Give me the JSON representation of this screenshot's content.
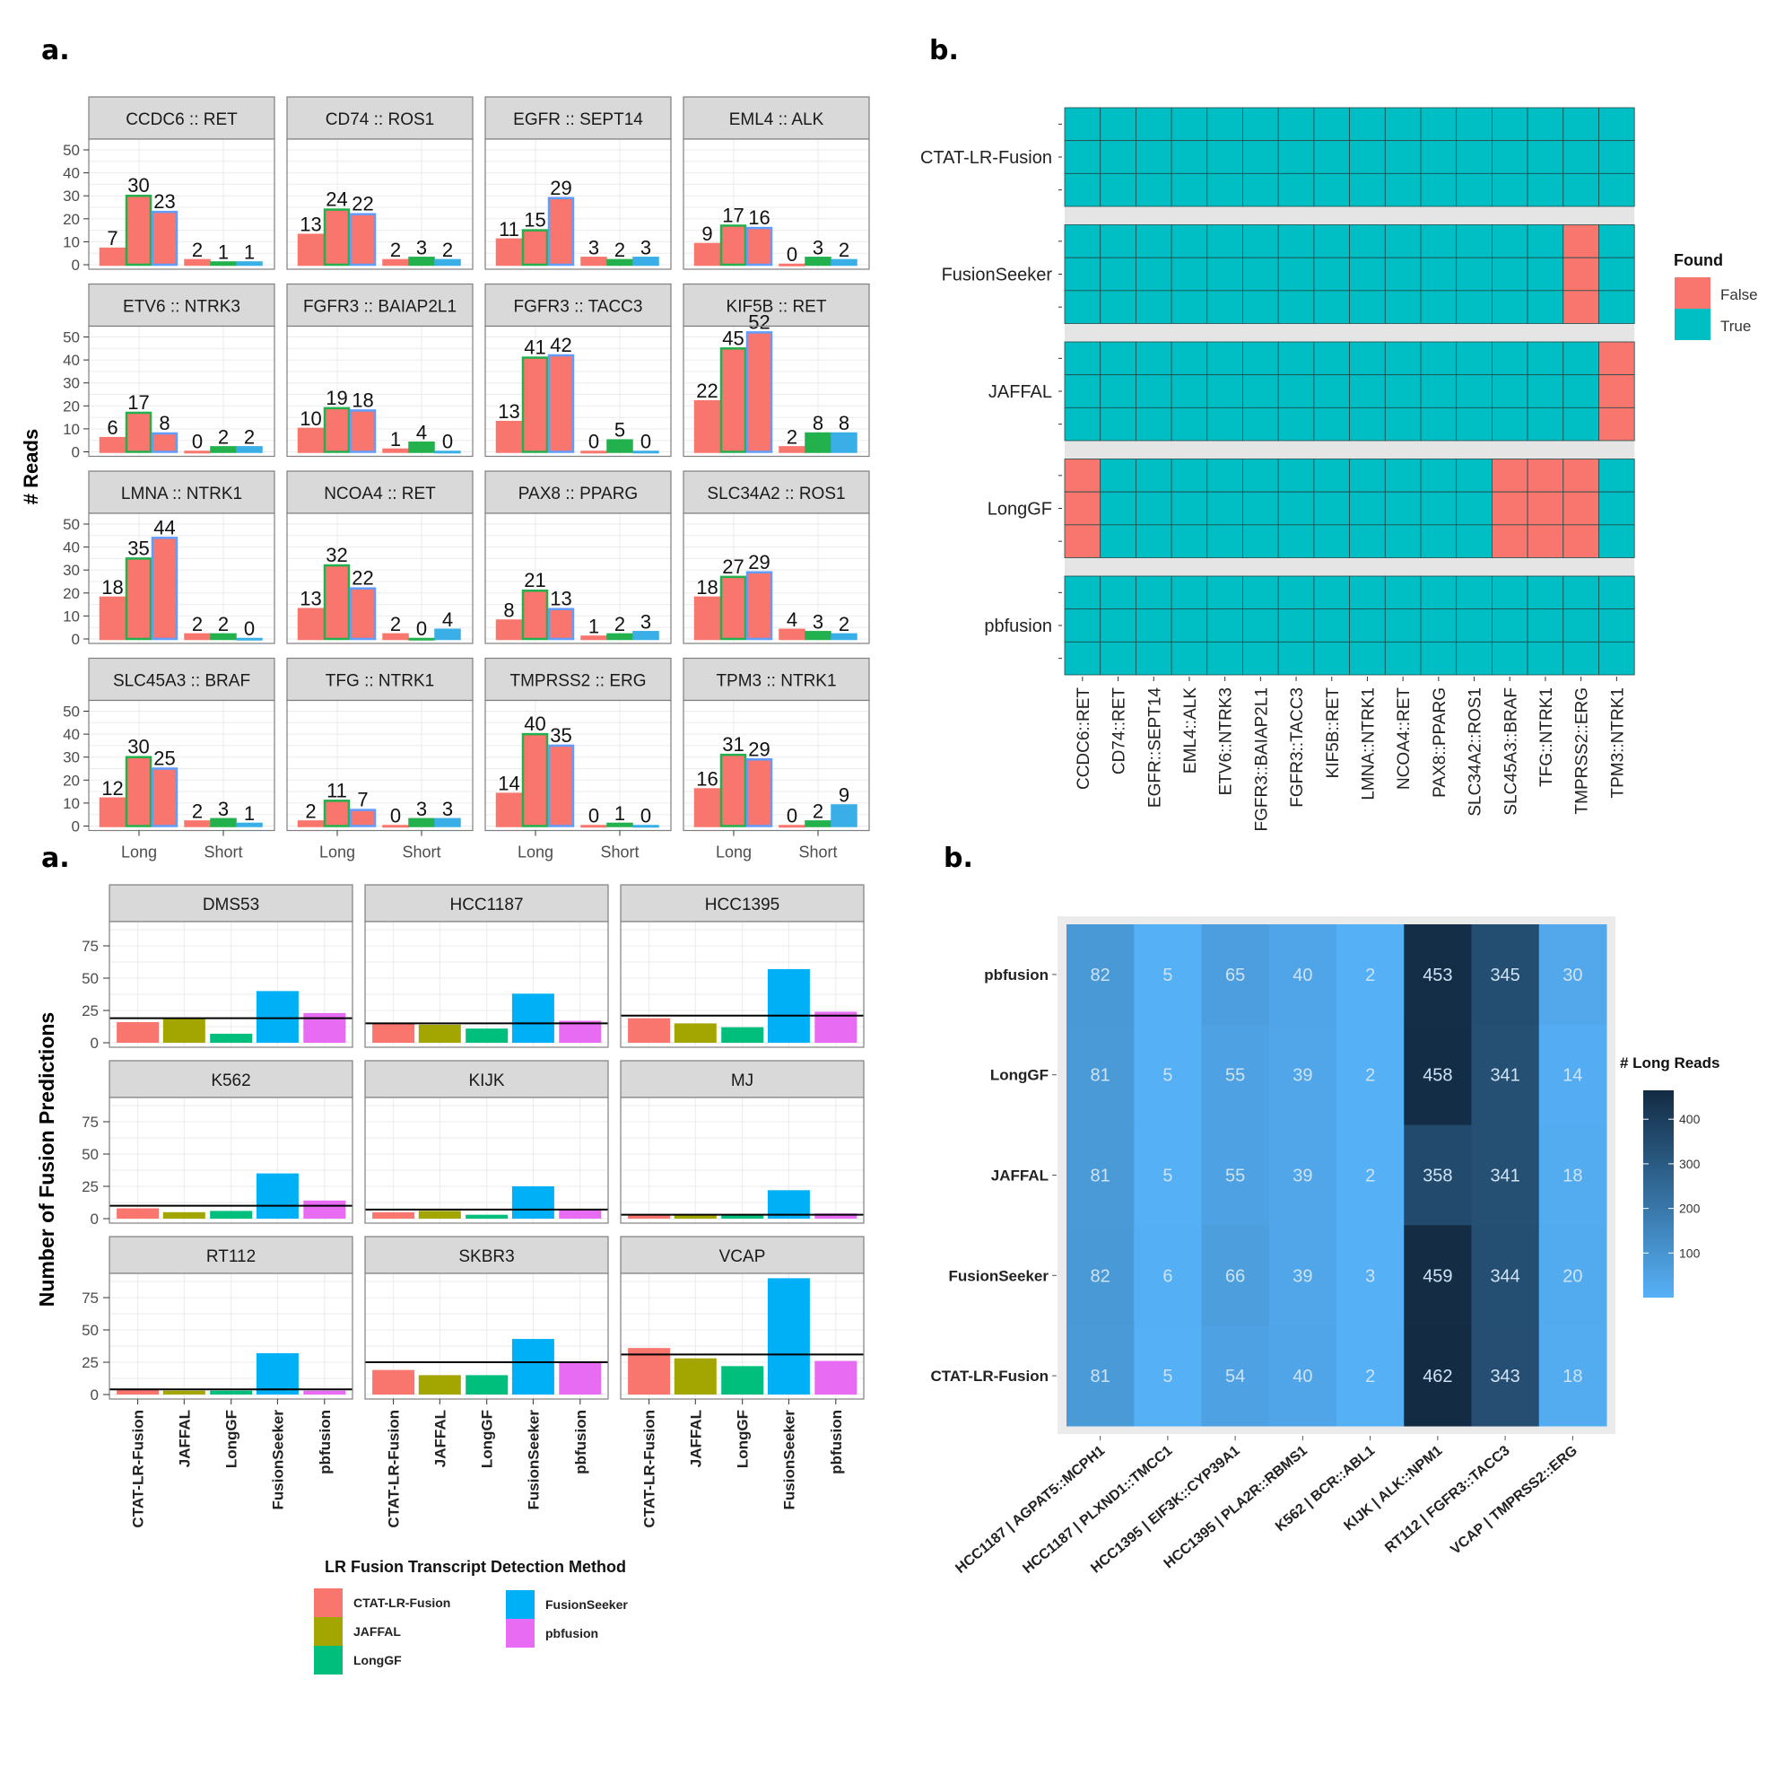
{
  "panel_labels": {
    "top_left": "a.",
    "top_right": "b.",
    "bottom_left": "a.",
    "bottom_right": "b."
  },
  "chart_data": [
    {
      "type": "bar",
      "ylabel": "# Reads",
      "ylim": [
        0,
        50
      ],
      "yticks": [
        "0",
        "10",
        "20",
        "30",
        "40",
        "50"
      ],
      "categories": [
        "Long",
        "Short"
      ],
      "grid": true,
      "colors": {
        "red": "#F8766D",
        "green": "#22B14C",
        "blue": "#3AAEE6",
        "blue_outline": "#619CFF"
      },
      "facets": [
        {
          "title": "CCDC6 :: RET",
          "long": [
            7,
            30,
            23
          ],
          "short": [
            2,
            1,
            1
          ]
        },
        {
          "title": "CD74 :: ROS1",
          "long": [
            13,
            24,
            22
          ],
          "short": [
            2,
            3,
            2
          ]
        },
        {
          "title": "EGFR :: SEPT14",
          "long": [
            11,
            15,
            29
          ],
          "short": [
            3,
            2,
            3
          ]
        },
        {
          "title": "EML4 :: ALK",
          "long": [
            9,
            17,
            16
          ],
          "short": [
            0,
            3,
            2
          ]
        },
        {
          "title": "ETV6 :: NTRK3",
          "long": [
            6,
            17,
            8
          ],
          "short": [
            0,
            2,
            2
          ]
        },
        {
          "title": "FGFR3 :: BAIAP2L1",
          "long": [
            10,
            19,
            18
          ],
          "short": [
            1,
            4,
            0
          ]
        },
        {
          "title": "FGFR3 :: TACC3",
          "long": [
            13,
            41,
            42
          ],
          "short": [
            0,
            5,
            0
          ]
        },
        {
          "title": "KIF5B :: RET",
          "long": [
            22,
            45,
            52
          ],
          "short": [
            2,
            8,
            8
          ]
        },
        {
          "title": "LMNA :: NTRK1",
          "long": [
            18,
            35,
            44
          ],
          "short": [
            2,
            2,
            0
          ]
        },
        {
          "title": "NCOA4 :: RET",
          "long": [
            13,
            32,
            22
          ],
          "short": [
            2,
            0,
            4
          ]
        },
        {
          "title": "PAX8 :: PPARG",
          "long": [
            8,
            21,
            13
          ],
          "short": [
            1,
            2,
            3
          ]
        },
        {
          "title": "SLC34A2 :: ROS1",
          "long": [
            18,
            27,
            29
          ],
          "short": [
            4,
            3,
            2
          ]
        },
        {
          "title": "SLC45A3 :: BRAF",
          "long": [
            12,
            30,
            25
          ],
          "short": [
            2,
            3,
            1
          ]
        },
        {
          "title": "TFG :: NTRK1",
          "long": [
            2,
            11,
            7
          ],
          "short": [
            0,
            3,
            3
          ]
        },
        {
          "title": "TMPRSS2 :: ERG",
          "long": [
            14,
            40,
            35
          ],
          "short": [
            0,
            1,
            0
          ]
        },
        {
          "title": "TPM3 :: NTRK1",
          "long": [
            16,
            31,
            29
          ],
          "short": [
            0,
            2,
            9
          ]
        }
      ]
    },
    {
      "type": "heatmap",
      "legend_title": "Found",
      "legend": [
        {
          "label": "False",
          "color": "#F8766D"
        },
        {
          "label": "True",
          "color": "#00BFC4"
        }
      ],
      "legend_placement": "right",
      "replicates_per_method": 3,
      "methods": [
        "CTAT-LR-Fusion",
        "FusionSeeker",
        "JAFFAL",
        "LongGF",
        "pbfusion"
      ],
      "fusions": [
        "CCDC6::RET",
        "CD74::RET",
        "EGFR::SEPT14",
        "EML4::ALK",
        "ETV6::NTRK3",
        "FGFR3::BAIAP2L1",
        "FGFR3::TACC3",
        "KIF5B::RET",
        "LMNA::NTRK1",
        "NCOA4::RET",
        "PAX8::PPARG",
        "SLC34A2::ROS1",
        "SLC45A3::BRAF",
        "TFG::NTRK1",
        "TMPRSS2::ERG",
        "TPM3::NTRK1"
      ],
      "not_found": {
        "CTAT-LR-Fusion": [],
        "FusionSeeker": [
          "TMPRSS2::ERG"
        ],
        "JAFFAL": [
          "TPM3::NTRK1"
        ],
        "LongGF": [
          "CCDC6::RET",
          "SLC45A3::BRAF",
          "TFG::NTRK1",
          "TMPRSS2::ERG"
        ],
        "pbfusion": []
      }
    },
    {
      "type": "bar",
      "ylabel": "Number of Fusion Predictions",
      "ylim": [
        0,
        95
      ],
      "yticks": [
        "0",
        "25",
        "50",
        "75"
      ],
      "grid": true,
      "categories": [
        "CTAT-LR-Fusion",
        "JAFFAL",
        "LongGF",
        "FusionSeeker",
        "pbfusion"
      ],
      "colors": [
        "#F8766D",
        "#A3A500",
        "#00BF7D",
        "#00B0F6",
        "#E76BF3"
      ],
      "legend_title": "LR Fusion Transcript Detection Method",
      "legend_placement": "bottom",
      "facets": [
        {
          "title": "DMS53",
          "values": [
            16,
            19,
            7,
            40,
            23
          ],
          "hline": 19
        },
        {
          "title": "HCC1187",
          "values": [
            15,
            14,
            11,
            38,
            17
          ],
          "hline": 15
        },
        {
          "title": "HCC1395",
          "values": [
            19,
            15,
            12,
            57,
            24
          ],
          "hline": 21
        },
        {
          "title": "K562",
          "values": [
            8,
            5,
            6,
            35,
            14
          ],
          "hline": 10
        },
        {
          "title": "KIJK",
          "values": [
            5,
            6,
            3,
            25,
            7
          ],
          "hline": 7
        },
        {
          "title": "MJ",
          "values": [
            3,
            3,
            3,
            22,
            4
          ],
          "hline": 3
        },
        {
          "title": "RT112",
          "values": [
            4,
            3,
            3,
            32,
            3
          ],
          "hline": 4
        },
        {
          "title": "SKBR3",
          "values": [
            19,
            15,
            15,
            43,
            25
          ],
          "hline": 25
        },
        {
          "title": "VCAP",
          "values": [
            36,
            28,
            22,
            90,
            26
          ],
          "hline": 31
        }
      ]
    },
    {
      "type": "heatmap",
      "legend_title": "# Long Reads",
      "legend_ticks": [
        "100",
        "200",
        "300",
        "400"
      ],
      "legend_placement": "right",
      "color_low": "#56B1F7",
      "color_high": "#132B43",
      "rows": [
        "pbfusion",
        "LongGF",
        "JAFFAL",
        "FusionSeeker",
        "CTAT-LR-Fusion"
      ],
      "columns": [
        "HCC1187 | AGPAT5::MCPH1",
        "HCC1187 | PLXND1::TMCC1",
        "HCC1395 | EIF3K::CYP39A1",
        "HCC1395 | PLA2R::RBMS1",
        "K562 | BCR::ABL1",
        "KIJK | ALK::NPM1",
        "RT112 | FGFR3::TACC3",
        "VCAP | TMPRSS2::ERG"
      ],
      "values": [
        [
          82,
          5,
          65,
          40,
          2,
          453,
          345,
          30
        ],
        [
          81,
          5,
          55,
          39,
          2,
          458,
          341,
          14
        ],
        [
          81,
          5,
          55,
          39,
          2,
          358,
          341,
          18
        ],
        [
          82,
          6,
          66,
          39,
          3,
          459,
          344,
          20
        ],
        [
          81,
          5,
          54,
          40,
          2,
          462,
          343,
          18
        ]
      ]
    }
  ]
}
